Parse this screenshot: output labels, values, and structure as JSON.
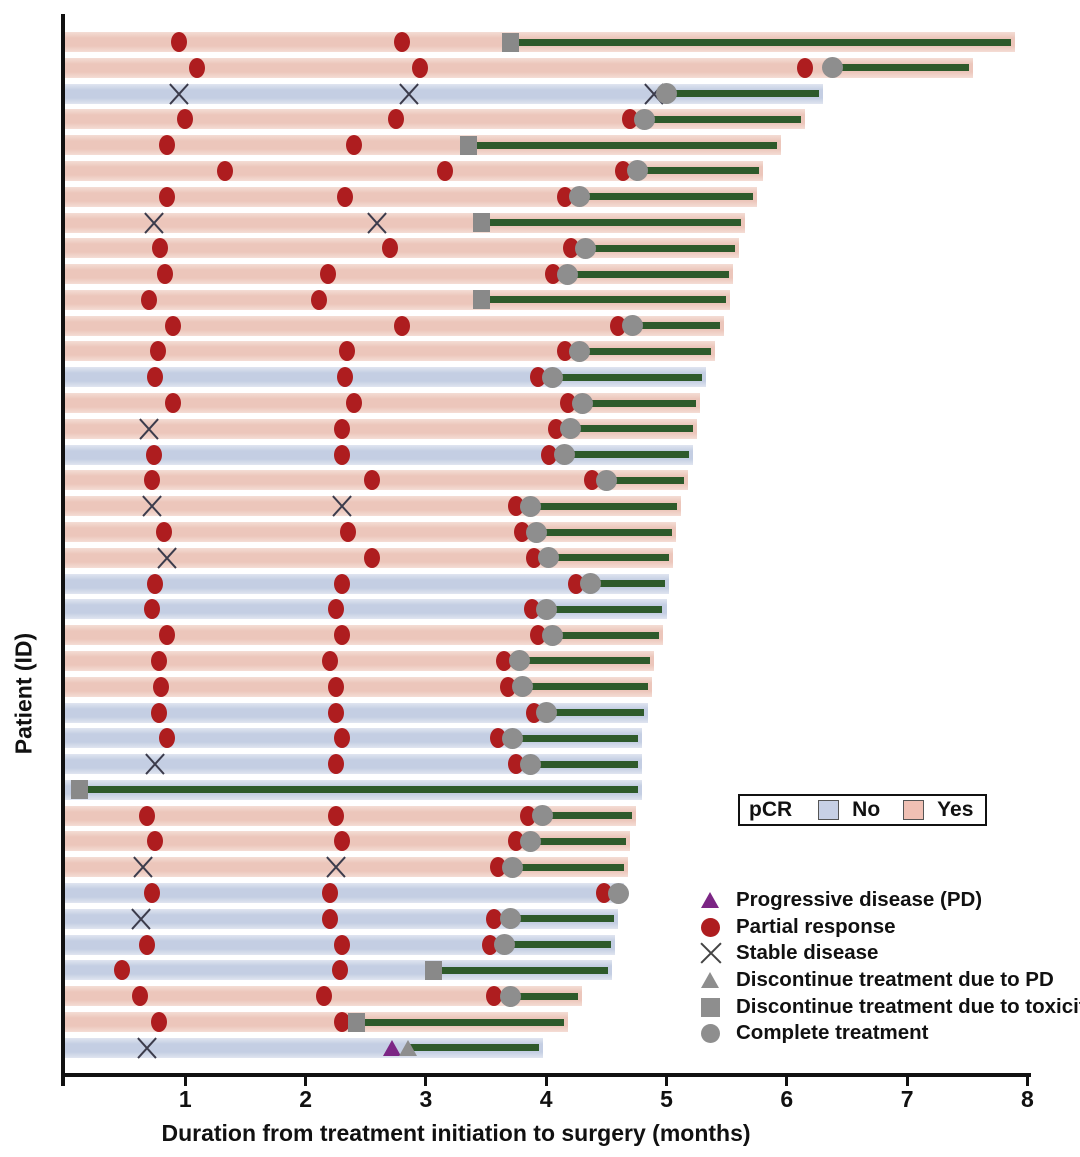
{
  "figure": {
    "xlabel": "Duration from treatment initiation to surgery (months)",
    "ylabel": "Patient (ID)",
    "x_ticks": [
      1,
      2,
      3,
      4,
      5,
      6,
      7,
      8
    ]
  },
  "pcr_legend": {
    "title": "pCR",
    "no_label": "No",
    "yes_label": "Yes"
  },
  "marker_legend": [
    {
      "icon": "triangle-purple-icon",
      "label": "Progressive disease (PD)"
    },
    {
      "icon": "circle-red-icon",
      "label": "Partial response"
    },
    {
      "icon": "x-cross-icon",
      "label": "Stable disease"
    },
    {
      "icon": "triangle-gray-icon",
      "label": "Discontinue treatment due to PD"
    },
    {
      "icon": "square-gray-icon",
      "label": "Discontinue treatment due to toxicity"
    },
    {
      "icon": "circle-gray-icon",
      "label": "Complete treatment"
    }
  ],
  "colors": {
    "pcr_yes_bar": "#ecc6bb",
    "pcr_no_bar": "#c4cee3",
    "post_treatment_line": "#2e5a2b",
    "partial_response": "#ae1d1f",
    "progressive_disease": "#7c2685",
    "discontinue_complete": "#8e8e8e",
    "axis": "#111111"
  },
  "chart_data": {
    "type": "bar",
    "subtype": "swimmer-plot",
    "orientation": "horizontal",
    "title": "",
    "xlabel": "Duration from treatment initiation to surgery (months)",
    "ylabel": "Patient (ID)",
    "xlim": [
      0,
      8
    ],
    "grid": false,
    "legend_position": "lower-right",
    "event_types": {
      "PR": "Partial response",
      "SD": "Stable disease",
      "PD": "Progressive disease"
    },
    "end_types": {
      "complete": "Complete treatment",
      "toxicity": "Discontinue treatment due to toxicity",
      "pd": "Discontinue treatment due to PD"
    },
    "patients": [
      {
        "pcr": "Yes",
        "surgery": 7.9,
        "end": {
          "type": "toxicity",
          "t": 3.7
        },
        "events": [
          {
            "type": "PR",
            "t": 0.95
          },
          {
            "type": "PR",
            "t": 2.8
          }
        ]
      },
      {
        "pcr": "Yes",
        "surgery": 7.55,
        "end": {
          "type": "complete",
          "t": 6.38
        },
        "events": [
          {
            "type": "PR",
            "t": 1.1
          },
          {
            "type": "PR",
            "t": 2.95
          },
          {
            "type": "PR",
            "t": 6.15
          }
        ]
      },
      {
        "pcr": "No",
        "surgery": 6.3,
        "end": {
          "type": "complete",
          "t": 5.0
        },
        "events": [
          {
            "type": "SD",
            "t": 0.95
          },
          {
            "type": "SD",
            "t": 2.86
          },
          {
            "type": "SD",
            "t": 4.9
          }
        ]
      },
      {
        "pcr": "Yes",
        "surgery": 6.15,
        "end": {
          "type": "complete",
          "t": 4.82
        },
        "events": [
          {
            "type": "PR",
            "t": 1.0
          },
          {
            "type": "PR",
            "t": 2.75
          },
          {
            "type": "PR",
            "t": 4.7
          }
        ]
      },
      {
        "pcr": "Yes",
        "surgery": 5.95,
        "end": {
          "type": "toxicity",
          "t": 3.35
        },
        "events": [
          {
            "type": "PR",
            "t": 0.85
          },
          {
            "type": "PR",
            "t": 2.4
          }
        ]
      },
      {
        "pcr": "Yes",
        "surgery": 5.8,
        "end": {
          "type": "complete",
          "t": 4.76
        },
        "events": [
          {
            "type": "PR",
            "t": 1.33
          },
          {
            "type": "PR",
            "t": 3.16
          },
          {
            "type": "PR",
            "t": 4.64
          }
        ]
      },
      {
        "pcr": "Yes",
        "surgery": 5.75,
        "end": {
          "type": "complete",
          "t": 4.28
        },
        "events": [
          {
            "type": "PR",
            "t": 0.85
          },
          {
            "type": "PR",
            "t": 2.33
          },
          {
            "type": "PR",
            "t": 4.16
          }
        ]
      },
      {
        "pcr": "Yes",
        "surgery": 5.65,
        "end": {
          "type": "toxicity",
          "t": 3.46
        },
        "events": [
          {
            "type": "SD",
            "t": 0.74
          },
          {
            "type": "SD",
            "t": 2.59
          }
        ]
      },
      {
        "pcr": "Yes",
        "surgery": 5.6,
        "end": {
          "type": "complete",
          "t": 4.33
        },
        "events": [
          {
            "type": "PR",
            "t": 0.79
          },
          {
            "type": "PR",
            "t": 2.7
          },
          {
            "type": "PR",
            "t": 4.21
          }
        ]
      },
      {
        "pcr": "Yes",
        "surgery": 5.55,
        "end": {
          "type": "complete",
          "t": 4.18
        },
        "events": [
          {
            "type": "PR",
            "t": 0.83
          },
          {
            "type": "PR",
            "t": 2.19
          },
          {
            "type": "PR",
            "t": 4.06
          }
        ]
      },
      {
        "pcr": "Yes",
        "surgery": 5.53,
        "end": {
          "type": "toxicity",
          "t": 3.46
        },
        "events": [
          {
            "type": "PR",
            "t": 0.7
          },
          {
            "type": "PR",
            "t": 2.11
          }
        ]
      },
      {
        "pcr": "Yes",
        "surgery": 5.48,
        "end": {
          "type": "complete",
          "t": 4.72
        },
        "events": [
          {
            "type": "PR",
            "t": 0.9
          },
          {
            "type": "PR",
            "t": 2.8
          },
          {
            "type": "PR",
            "t": 4.6
          }
        ]
      },
      {
        "pcr": "Yes",
        "surgery": 5.4,
        "end": {
          "type": "complete",
          "t": 4.28
        },
        "events": [
          {
            "type": "PR",
            "t": 0.77
          },
          {
            "type": "PR",
            "t": 2.34
          },
          {
            "type": "PR",
            "t": 4.16
          }
        ]
      },
      {
        "pcr": "No",
        "surgery": 5.33,
        "end": {
          "type": "complete",
          "t": 4.05
        },
        "events": [
          {
            "type": "PR",
            "t": 0.75
          },
          {
            "type": "PR",
            "t": 2.33
          },
          {
            "type": "PR",
            "t": 3.93
          }
        ]
      },
      {
        "pcr": "Yes",
        "surgery": 5.28,
        "end": {
          "type": "complete",
          "t": 4.3
        },
        "events": [
          {
            "type": "PR",
            "t": 0.9
          },
          {
            "type": "PR",
            "t": 2.4
          },
          {
            "type": "PR",
            "t": 4.18
          }
        ]
      },
      {
        "pcr": "Yes",
        "surgery": 5.25,
        "end": {
          "type": "complete",
          "t": 4.2
        },
        "events": [
          {
            "type": "SD",
            "t": 0.7
          },
          {
            "type": "PR",
            "t": 2.3
          },
          {
            "type": "PR",
            "t": 4.08
          }
        ]
      },
      {
        "pcr": "No",
        "surgery": 5.22,
        "end": {
          "type": "complete",
          "t": 4.15
        },
        "events": [
          {
            "type": "PR",
            "t": 0.74
          },
          {
            "type": "PR",
            "t": 2.3
          },
          {
            "type": "PR",
            "t": 4.02
          }
        ]
      },
      {
        "pcr": "Yes",
        "surgery": 5.18,
        "end": {
          "type": "complete",
          "t": 4.5
        },
        "events": [
          {
            "type": "PR",
            "t": 0.72
          },
          {
            "type": "PR",
            "t": 2.55
          },
          {
            "type": "PR",
            "t": 4.38
          }
        ]
      },
      {
        "pcr": "Yes",
        "surgery": 5.12,
        "end": {
          "type": "complete",
          "t": 3.87
        },
        "events": [
          {
            "type": "SD",
            "t": 0.72
          },
          {
            "type": "SD",
            "t": 2.3
          },
          {
            "type": "PR",
            "t": 3.75
          }
        ]
      },
      {
        "pcr": "Yes",
        "surgery": 5.08,
        "end": {
          "type": "complete",
          "t": 3.92
        },
        "events": [
          {
            "type": "PR",
            "t": 0.82
          },
          {
            "type": "PR",
            "t": 2.35
          },
          {
            "type": "PR",
            "t": 3.8
          }
        ]
      },
      {
        "pcr": "Yes",
        "surgery": 5.05,
        "end": {
          "type": "complete",
          "t": 4.02
        },
        "events": [
          {
            "type": "SD",
            "t": 0.85
          },
          {
            "type": "PR",
            "t": 2.55
          },
          {
            "type": "PR",
            "t": 3.9
          }
        ]
      },
      {
        "pcr": "No",
        "surgery": 5.02,
        "end": {
          "type": "complete",
          "t": 4.37
        },
        "events": [
          {
            "type": "PR",
            "t": 0.75
          },
          {
            "type": "PR",
            "t": 2.3
          },
          {
            "type": "PR",
            "t": 4.25
          }
        ]
      },
      {
        "pcr": "No",
        "surgery": 5.0,
        "end": {
          "type": "complete",
          "t": 4.0
        },
        "events": [
          {
            "type": "PR",
            "t": 0.72
          },
          {
            "type": "PR",
            "t": 2.25
          },
          {
            "type": "PR",
            "t": 3.88
          }
        ]
      },
      {
        "pcr": "Yes",
        "surgery": 4.97,
        "end": {
          "type": "complete",
          "t": 4.05
        },
        "events": [
          {
            "type": "PR",
            "t": 0.85
          },
          {
            "type": "PR",
            "t": 2.3
          },
          {
            "type": "PR",
            "t": 3.93
          }
        ]
      },
      {
        "pcr": "Yes",
        "surgery": 4.9,
        "end": {
          "type": "complete",
          "t": 3.78
        },
        "events": [
          {
            "type": "PR",
            "t": 0.78
          },
          {
            "type": "PR",
            "t": 2.2
          },
          {
            "type": "PR",
            "t": 3.65
          }
        ]
      },
      {
        "pcr": "Yes",
        "surgery": 4.88,
        "end": {
          "type": "complete",
          "t": 3.8
        },
        "events": [
          {
            "type": "PR",
            "t": 0.8
          },
          {
            "type": "PR",
            "t": 2.25
          },
          {
            "type": "PR",
            "t": 3.68
          }
        ]
      },
      {
        "pcr": "No",
        "surgery": 4.85,
        "end": {
          "type": "complete",
          "t": 4.0
        },
        "events": [
          {
            "type": "PR",
            "t": 0.78
          },
          {
            "type": "PR",
            "t": 2.25
          },
          {
            "type": "PR",
            "t": 3.9
          }
        ]
      },
      {
        "pcr": "No",
        "surgery": 4.8,
        "end": {
          "type": "complete",
          "t": 3.72
        },
        "events": [
          {
            "type": "PR",
            "t": 0.85
          },
          {
            "type": "PR",
            "t": 2.3
          },
          {
            "type": "PR",
            "t": 3.6
          }
        ]
      },
      {
        "pcr": "No",
        "surgery": 4.8,
        "end": {
          "type": "complete",
          "t": 3.87
        },
        "events": [
          {
            "type": "SD",
            "t": 0.75
          },
          {
            "type": "PR",
            "t": 2.25
          },
          {
            "type": "PR",
            "t": 3.75
          }
        ]
      },
      {
        "pcr": "No",
        "surgery": 4.8,
        "end": {
          "type": "toxicity",
          "t": 0.12
        },
        "events": []
      },
      {
        "pcr": "Yes",
        "surgery": 4.75,
        "end": {
          "type": "complete",
          "t": 3.97
        },
        "events": [
          {
            "type": "PR",
            "t": 0.68
          },
          {
            "type": "PR",
            "t": 2.25
          },
          {
            "type": "PR",
            "t": 3.85
          }
        ]
      },
      {
        "pcr": "Yes",
        "surgery": 4.7,
        "end": {
          "type": "complete",
          "t": 3.87
        },
        "events": [
          {
            "type": "PR",
            "t": 0.75
          },
          {
            "type": "PR",
            "t": 2.3
          },
          {
            "type": "PR",
            "t": 3.75
          }
        ]
      },
      {
        "pcr": "Yes",
        "surgery": 4.68,
        "end": {
          "type": "complete",
          "t": 3.72
        },
        "events": [
          {
            "type": "SD",
            "t": 0.65
          },
          {
            "type": "SD",
            "t": 2.25
          },
          {
            "type": "PR",
            "t": 3.6
          }
        ]
      },
      {
        "pcr": "No",
        "surgery": 4.65,
        "end": {
          "type": "complete",
          "t": 4.6
        },
        "events": [
          {
            "type": "PR",
            "t": 0.72
          },
          {
            "type": "PR",
            "t": 2.2
          },
          {
            "type": "PR",
            "t": 4.48
          }
        ]
      },
      {
        "pcr": "No",
        "surgery": 4.6,
        "end": {
          "type": "complete",
          "t": 3.7
        },
        "events": [
          {
            "type": "SD",
            "t": 0.63
          },
          {
            "type": "PR",
            "t": 2.2
          },
          {
            "type": "PR",
            "t": 3.57
          }
        ]
      },
      {
        "pcr": "No",
        "surgery": 4.57,
        "end": {
          "type": "complete",
          "t": 3.65
        },
        "events": [
          {
            "type": "PR",
            "t": 0.68
          },
          {
            "type": "PR",
            "t": 2.3
          },
          {
            "type": "PR",
            "t": 3.53
          }
        ]
      },
      {
        "pcr": "No",
        "surgery": 4.55,
        "end": {
          "type": "toxicity",
          "t": 3.06
        },
        "events": [
          {
            "type": "PR",
            "t": 0.47
          },
          {
            "type": "PR",
            "t": 2.29
          }
        ]
      },
      {
        "pcr": "Yes",
        "surgery": 4.3,
        "end": {
          "type": "complete",
          "t": 3.7
        },
        "events": [
          {
            "type": "PR",
            "t": 0.62
          },
          {
            "type": "PR",
            "t": 2.15
          },
          {
            "type": "PR",
            "t": 3.57
          }
        ]
      },
      {
        "pcr": "Yes",
        "surgery": 4.18,
        "end": {
          "type": "toxicity",
          "t": 2.42
        },
        "events": [
          {
            "type": "PR",
            "t": 0.78
          },
          {
            "type": "PR",
            "t": 2.3
          }
        ]
      },
      {
        "pcr": "No",
        "surgery": 3.97,
        "end": {
          "type": "pd",
          "t": 2.85
        },
        "events": [
          {
            "type": "SD",
            "t": 0.68
          },
          {
            "type": "PD",
            "t": 2.72
          }
        ]
      }
    ]
  }
}
